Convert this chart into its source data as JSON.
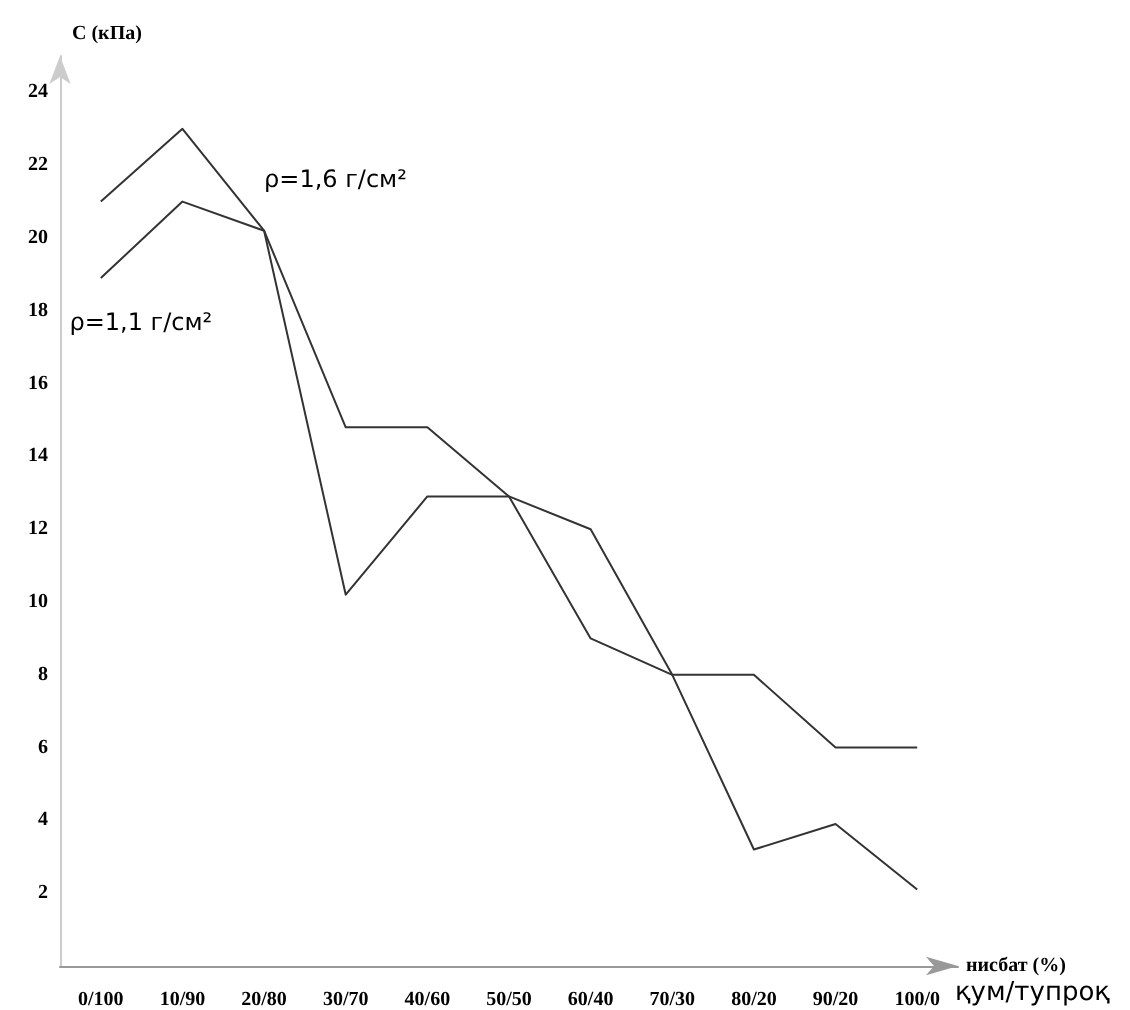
{
  "chart_data": {
    "type": "line",
    "ylabel": "C (кПа)",
    "xlabel": "нисбат (%)",
    "categories": [
      "0/100",
      "10/90",
      "20/80",
      "30/70",
      "40/60",
      "50/50",
      "60/40",
      "70/30",
      "80/20",
      "90/20",
      "100/0"
    ],
    "series": [
      {
        "name": "ρ=1,6 г/см²",
        "color": "#333333",
        "values": [
          21,
          23,
          20.2,
          14.8,
          14.8,
          12.9,
          9,
          8,
          8,
          6,
          6
        ]
      },
      {
        "name": "ρ=1,1 г/см²",
        "color": "#333333",
        "values": [
          18.9,
          21,
          20.2,
          10.2,
          12.9,
          12.9,
          12,
          8,
          3.2,
          3.9,
          2.1
        ]
      }
    ],
    "ylim": [
      0,
      25
    ],
    "yticks": [
      2,
      4,
      6,
      8,
      10,
      12,
      14,
      16,
      18,
      20,
      22,
      24
    ],
    "grid": false,
    "legend": false,
    "marker": "none",
    "line_style": "solid",
    "annotations": [
      "қум/тупроқ"
    ]
  }
}
